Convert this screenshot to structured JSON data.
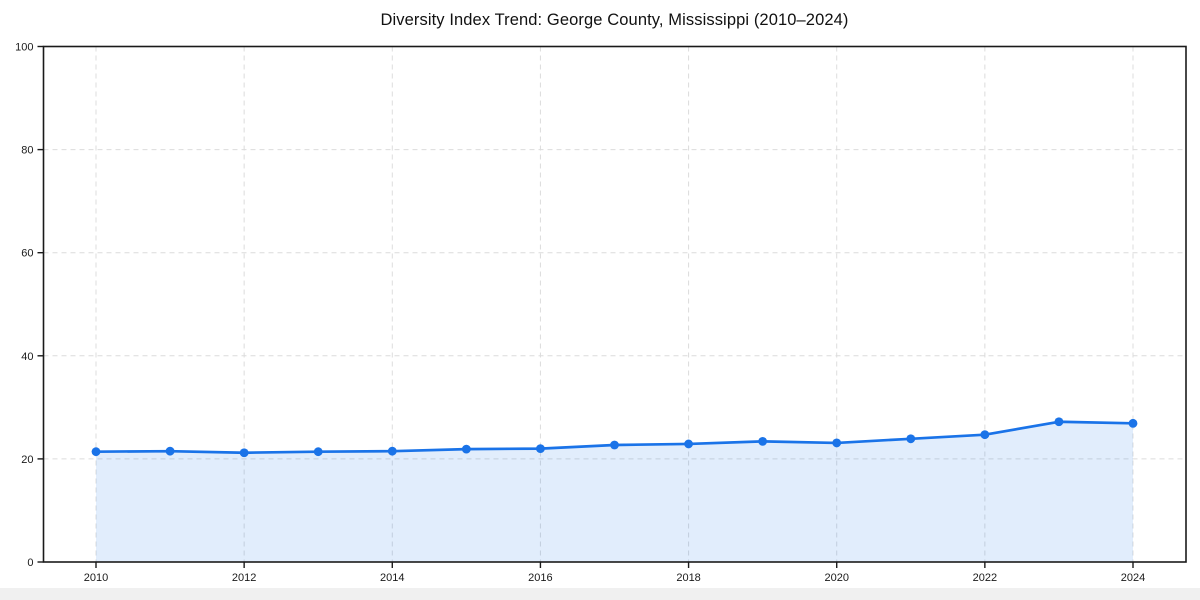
{
  "chart_data": {
    "type": "area",
    "title": "Diversity Index Trend: George County, Mississippi (2010–2024)",
    "x": [
      2010,
      2011,
      2012,
      2013,
      2014,
      2015,
      2016,
      2017,
      2018,
      2019,
      2020,
      2021,
      2022,
      2023,
      2024
    ],
    "series": [
      {
        "name": "Diversity Index",
        "values": [
          21.4,
          21.5,
          21.2,
          21.4,
          21.5,
          21.9,
          22.0,
          22.7,
          22.9,
          23.4,
          23.1,
          23.9,
          24.7,
          27.2,
          26.9
        ]
      }
    ],
    "xlabel": "",
    "ylabel": "",
    "ylim": [
      0,
      100
    ],
    "yticks": [
      0,
      20,
      40,
      60,
      80,
      100
    ],
    "xticks": [
      2010,
      2012,
      2014,
      2016,
      2018,
      2020,
      2022,
      2024
    ],
    "grid": {
      "visible": true,
      "style": "dashed",
      "color": "#dcdcdc"
    },
    "legend": {
      "visible": false
    },
    "marker": "circle",
    "colors": {
      "line": "#1a73e8",
      "marker": "#1a73e8",
      "fill": "rgba(26,115,232,0.13)",
      "axis": "#1a1a1a",
      "tick_label": "#1a1a1a",
      "title": "#111111",
      "background": "#ffffff",
      "bottom_strip": "#f0f0f0"
    }
  }
}
